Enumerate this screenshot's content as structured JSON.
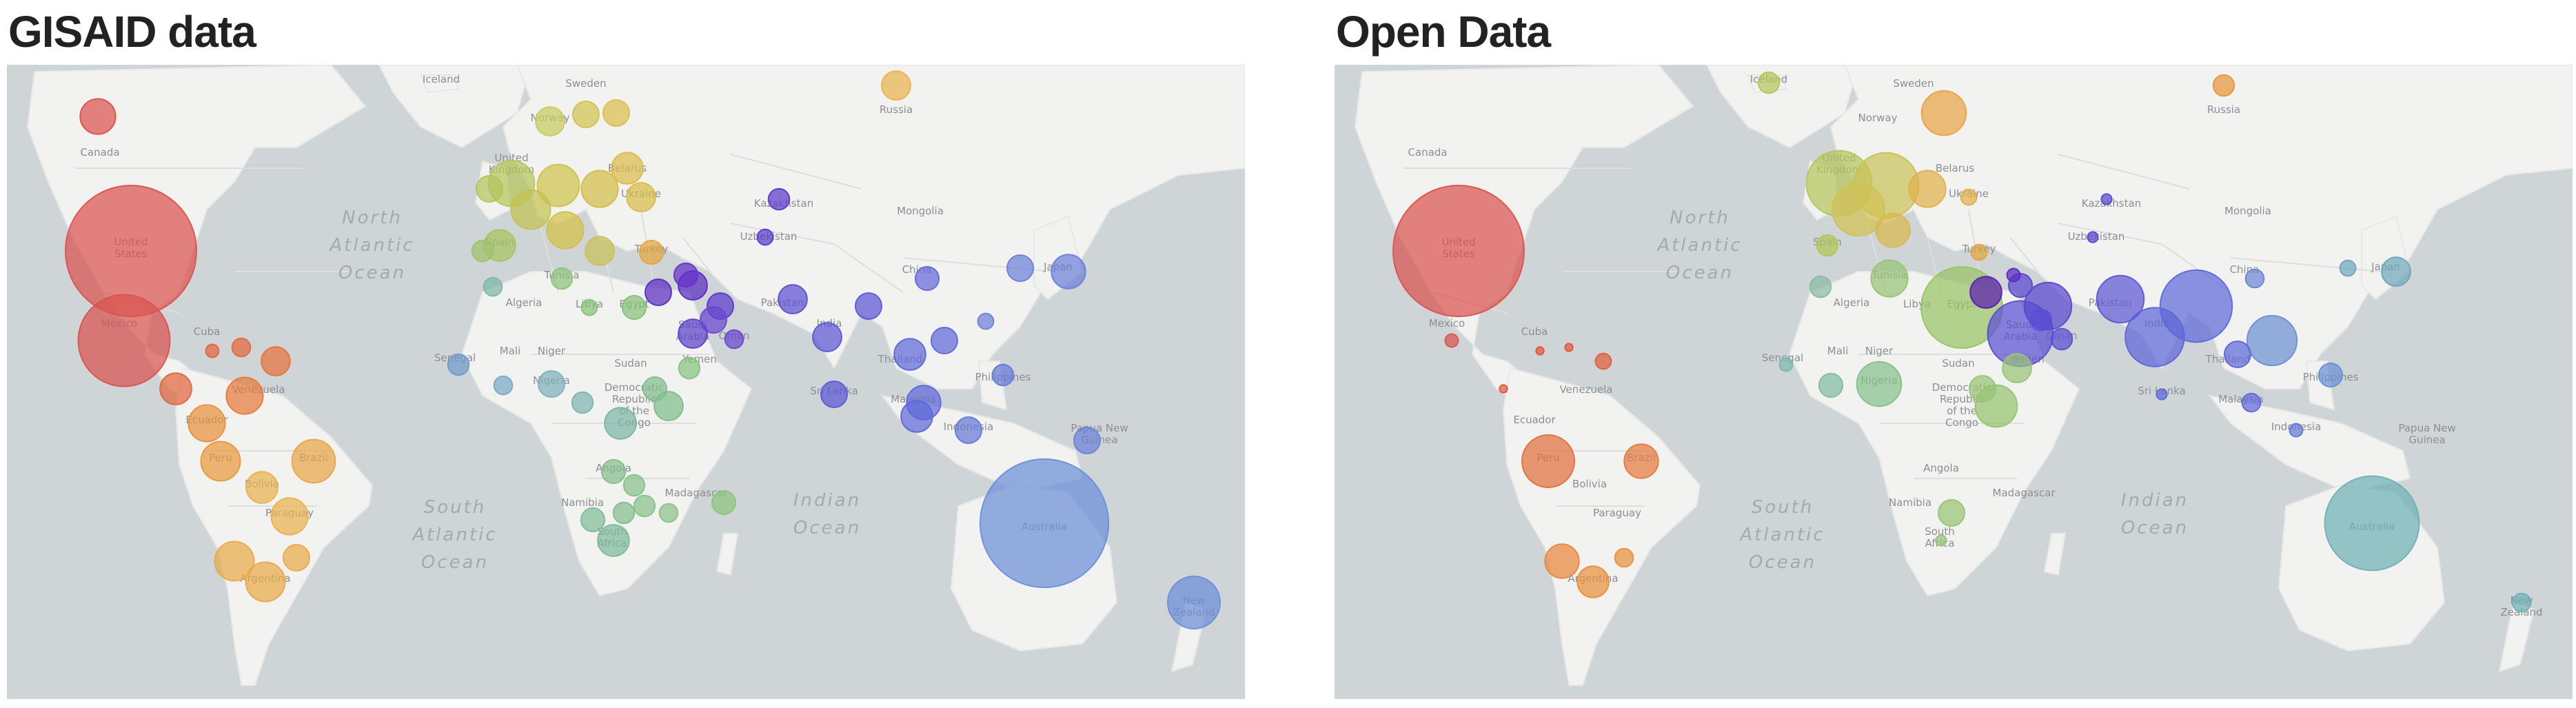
{
  "colors": {
    "ocean": "#cfd4d7",
    "land": "#f2f2f1",
    "border": "#ffffff",
    "title": "#222222",
    "ocean_label": "#a4abaf",
    "country_label": "#8b8f92"
  },
  "ocean_labels": [
    {
      "id": "north-atlantic",
      "lines": [
        "North",
        "Atlantic",
        "Ocean"
      ]
    },
    {
      "id": "south-atlantic",
      "lines": [
        "South",
        "Atlantic",
        "Ocean"
      ]
    },
    {
      "id": "indian",
      "lines": [
        "Indian",
        "Ocean"
      ]
    }
  ],
  "country_labels": [
    {
      "id": "iceland",
      "text": "Iceland"
    },
    {
      "id": "sweden",
      "text": "Sweden"
    },
    {
      "id": "russia",
      "text": "Russia"
    },
    {
      "id": "norway",
      "text": "Norway"
    },
    {
      "id": "canada",
      "text": "Canada"
    },
    {
      "id": "united-kingdom",
      "text": "United Kingdom"
    },
    {
      "id": "belarus",
      "text": "Belarus"
    },
    {
      "id": "ukraine",
      "text": "Ukraine"
    },
    {
      "id": "kazakhstan",
      "text": "Kazakhstan"
    },
    {
      "id": "mongolia",
      "text": "Mongolia"
    },
    {
      "id": "united-states",
      "text": "United States"
    },
    {
      "id": "spain",
      "text": "Spain"
    },
    {
      "id": "turkey",
      "text": "Turkey"
    },
    {
      "id": "uzbekistan",
      "text": "Uzbekistan"
    },
    {
      "id": "china",
      "text": "China"
    },
    {
      "id": "japan",
      "text": "Japan"
    },
    {
      "id": "tunisia",
      "text": "Tunisia"
    },
    {
      "id": "algeria",
      "text": "Algeria"
    },
    {
      "id": "libya",
      "text": "Libya"
    },
    {
      "id": "egypt",
      "text": "Egypt"
    },
    {
      "id": "pakistan",
      "text": "Pakistan"
    },
    {
      "id": "india",
      "text": "India"
    },
    {
      "id": "saudi-arabia",
      "text": "Saudi Arabia"
    },
    {
      "id": "oman",
      "text": "Oman"
    },
    {
      "id": "mexico",
      "text": "Mexico"
    },
    {
      "id": "cuba",
      "text": "Cuba"
    },
    {
      "id": "thailand",
      "text": "Thailand"
    },
    {
      "id": "mali",
      "text": "Mali"
    },
    {
      "id": "niger",
      "text": "Niger"
    },
    {
      "id": "sudan",
      "text": "Sudan"
    },
    {
      "id": "yemen",
      "text": "Yemen"
    },
    {
      "id": "senegal",
      "text": "Senegal"
    },
    {
      "id": "nigeria",
      "text": "Nigeria"
    },
    {
      "id": "philippines",
      "text": "Philippines"
    },
    {
      "id": "venezuela",
      "text": "Venezuela"
    },
    {
      "id": "drc",
      "text": "Democratic Republic of the Congo"
    },
    {
      "id": "sri-lanka",
      "text": "Sri Lanka"
    },
    {
      "id": "malaysia",
      "text": "Malaysia"
    },
    {
      "id": "ecuador",
      "text": "Ecuador"
    },
    {
      "id": "indonesia",
      "text": "Indonesia"
    },
    {
      "id": "papua-new-guinea",
      "text": "Papua New Guinea"
    },
    {
      "id": "peru",
      "text": "Peru"
    },
    {
      "id": "brazil",
      "text": "Brazil"
    },
    {
      "id": "angola",
      "text": "Angola"
    },
    {
      "id": "bolivia",
      "text": "Bolivia"
    },
    {
      "id": "madagascar",
      "text": "Madagascar"
    },
    {
      "id": "namibia",
      "text": "Namibia"
    },
    {
      "id": "paraguay",
      "text": "Paraguay"
    },
    {
      "id": "australia",
      "text": "Australia"
    },
    {
      "id": "south-africa",
      "text": "South Africa"
    },
    {
      "id": "argentina",
      "text": "Argentina"
    },
    {
      "id": "new-zealand",
      "text": "New Zealand"
    }
  ],
  "panels": [
    {
      "id": "gisaid",
      "title": "GISAID data",
      "bubbles": [
        {
          "c": "united-states",
          "size": 1.0,
          "color": "#d9534f"
        },
        {
          "c": "mexico",
          "size": 0.7,
          "color": "#d9534f"
        },
        {
          "c": "canada",
          "size": 0.27,
          "color": "#d9534f"
        },
        {
          "c": "cuba",
          "size": 0.1,
          "color": "#e2663e"
        },
        {
          "c": "venezuela",
          "size": 0.22,
          "color": "#e5733b"
        },
        {
          "c": "colombia",
          "size": 0.28,
          "color": "#e57a3b"
        },
        {
          "c": "central-america",
          "size": 0.24,
          "color": "#e2663e"
        },
        {
          "c": "caribbean",
          "size": 0.14,
          "color": "#e06a3a"
        },
        {
          "c": "ecuador",
          "size": 0.28,
          "color": "#e8903e"
        },
        {
          "c": "peru",
          "size": 0.3,
          "color": "#e8983e"
        },
        {
          "c": "brazil",
          "size": 0.33,
          "color": "#e8a548"
        },
        {
          "c": "bolivia",
          "size": 0.24,
          "color": "#e9b24f"
        },
        {
          "c": "paraguay",
          "size": 0.28,
          "color": "#e9b24f"
        },
        {
          "c": "chile",
          "size": 0.3,
          "color": "#e8aa48"
        },
        {
          "c": "argentina",
          "size": 0.3,
          "color": "#e8aa48"
        },
        {
          "c": "uruguay",
          "size": 0.2,
          "color": "#e8aa48"
        },
        {
          "c": "russia",
          "size": 0.22,
          "color": "#e9b24f"
        },
        {
          "c": "norway",
          "size": 0.22,
          "color": "#c7cc5e"
        },
        {
          "c": "sweden",
          "size": 0.2,
          "color": "#d2c152"
        },
        {
          "c": "finland",
          "size": 0.2,
          "color": "#dcbc4f"
        },
        {
          "c": "united-kingdom",
          "size": 0.35,
          "color": "#b6c65a"
        },
        {
          "c": "ireland",
          "size": 0.2,
          "color": "#b0c55c"
        },
        {
          "c": "france",
          "size": 0.3,
          "color": "#c3c352"
        },
        {
          "c": "germany",
          "size": 0.32,
          "color": "#cdc24c"
        },
        {
          "c": "poland",
          "size": 0.28,
          "color": "#d3bd4a"
        },
        {
          "c": "italy",
          "size": 0.28,
          "color": "#d2c048"
        },
        {
          "c": "spain",
          "size": 0.24,
          "color": "#a8c460"
        },
        {
          "c": "portugal",
          "size": 0.16,
          "color": "#9cc46a"
        },
        {
          "c": "belarus",
          "size": 0.24,
          "color": "#dbbc4c"
        },
        {
          "c": "ukraine",
          "size": 0.22,
          "color": "#d8bb4a"
        },
        {
          "c": "balkans",
          "size": 0.22,
          "color": "#c8c25a"
        },
        {
          "c": "turkey",
          "size": 0.18,
          "color": "#e4a73e"
        },
        {
          "c": "tunisia",
          "size": 0.16,
          "color": "#8ec47a"
        },
        {
          "c": "egypt",
          "size": 0.18,
          "color": "#86c07a"
        },
        {
          "c": "morocco",
          "size": 0.14,
          "color": "#7eb6a8"
        },
        {
          "c": "libya",
          "size": 0.12,
          "color": "#86c07a"
        },
        {
          "c": "georgia",
          "size": 0.18,
          "color": "#6632c8"
        },
        {
          "c": "israel",
          "size": 0.2,
          "color": "#5a2cc0"
        },
        {
          "c": "iraq",
          "size": 0.22,
          "color": "#5a2cc0"
        },
        {
          "c": "iran",
          "size": 0.2,
          "color": "#5c3acb"
        },
        {
          "c": "gulf",
          "size": 0.2,
          "color": "#6a46d0"
        },
        {
          "c": "saudi-arabia",
          "size": 0.22,
          "color": "#5d40cc"
        },
        {
          "c": "oman",
          "size": 0.14,
          "color": "#6a46d0"
        },
        {
          "c": "kazakhstan",
          "size": 0.16,
          "color": "#5a3acb"
        },
        {
          "c": "uzbekistan",
          "size": 0.12,
          "color": "#5a3acb"
        },
        {
          "c": "pakistan",
          "size": 0.22,
          "color": "#5d50d3"
        },
        {
          "c": "india",
          "size": 0.22,
          "color": "#5d58d6"
        },
        {
          "c": "bangladesh",
          "size": 0.2,
          "color": "#5d58d6"
        },
        {
          "c": "sri-lanka",
          "size": 0.2,
          "color": "#5d58d6"
        },
        {
          "c": "china",
          "size": 0.18,
          "color": "#6569d8"
        },
        {
          "c": "japan",
          "size": 0.26,
          "color": "#6b7fd8"
        },
        {
          "c": "korea",
          "size": 0.2,
          "color": "#6b7fd8"
        },
        {
          "c": "taiwan",
          "size": 0.12,
          "color": "#6b7fd8"
        },
        {
          "c": "thailand",
          "size": 0.24,
          "color": "#5e6ad8"
        },
        {
          "c": "vietnam",
          "size": 0.2,
          "color": "#5e6ad8"
        },
        {
          "c": "malaysia",
          "size": 0.26,
          "color": "#5e6ad8"
        },
        {
          "c": "singapore",
          "size": 0.24,
          "color": "#5e6ad8"
        },
        {
          "c": "philippines",
          "size": 0.16,
          "color": "#6678d8"
        },
        {
          "c": "indonesia",
          "size": 0.2,
          "color": "#6678d8"
        },
        {
          "c": "papua-new-guinea",
          "size": 0.2,
          "color": "#6b82d8"
        },
        {
          "c": "australia",
          "size": 0.98,
          "color": "#6b8fd8"
        },
        {
          "c": "new-zealand",
          "size": 0.4,
          "color": "#6b8fd8"
        },
        {
          "c": "senegal",
          "size": 0.16,
          "color": "#6f9bc9"
        },
        {
          "c": "ghana",
          "size": 0.14,
          "color": "#79a9c6"
        },
        {
          "c": "nigeria",
          "size": 0.2,
          "color": "#7db0bd"
        },
        {
          "c": "cameroon",
          "size": 0.16,
          "color": "#7bb5ad"
        },
        {
          "c": "drc",
          "size": 0.24,
          "color": "#7ab5a5"
        },
        {
          "c": "kenya",
          "size": 0.22,
          "color": "#7fbd8c"
        },
        {
          "c": "ethiopia",
          "size": 0.16,
          "color": "#86c27f"
        },
        {
          "c": "uganda",
          "size": 0.18,
          "color": "#80bd8f"
        },
        {
          "c": "angola",
          "size": 0.18,
          "color": "#84be8c"
        },
        {
          "c": "zambia",
          "size": 0.16,
          "color": "#88c18a"
        },
        {
          "c": "zimbabwe",
          "size": 0.16,
          "color": "#88c18a"
        },
        {
          "c": "mozambique",
          "size": 0.14,
          "color": "#8ac286"
        },
        {
          "c": "namibia",
          "size": 0.18,
          "color": "#80bd96"
        },
        {
          "c": "botswana",
          "size": 0.16,
          "color": "#84be8c"
        },
        {
          "c": "south-africa",
          "size": 0.24,
          "color": "#7dba9c"
        },
        {
          "c": "madagascar",
          "size": 0.18,
          "color": "#8ec580"
        }
      ]
    },
    {
      "id": "open-data",
      "title": "Open Data",
      "bubbles": [
        {
          "c": "united-states",
          "size": 1.0,
          "color": "#d9534f"
        },
        {
          "c": "mexico",
          "size": 0.1,
          "color": "#d9534f"
        },
        {
          "c": "cuba",
          "size": 0.06,
          "color": "#e0593f"
        },
        {
          "c": "caribbean",
          "size": 0.06,
          "color": "#e0593f"
        },
        {
          "c": "central-america",
          "size": 0.06,
          "color": "#e0593f"
        },
        {
          "c": "venezuela",
          "size": 0.12,
          "color": "#e25f3f"
        },
        {
          "c": "peru",
          "size": 0.4,
          "color": "#e2703f"
        },
        {
          "c": "brazil",
          "size": 0.26,
          "color": "#e47a3f"
        },
        {
          "c": "chile",
          "size": 0.26,
          "color": "#e8883e"
        },
        {
          "c": "argentina",
          "size": 0.24,
          "color": "#e8903e"
        },
        {
          "c": "uruguay",
          "size": 0.14,
          "color": "#e8903e"
        },
        {
          "c": "russia",
          "size": 0.16,
          "color": "#e8963e"
        },
        {
          "c": "finland",
          "size": 0.34,
          "color": "#e8a348"
        },
        {
          "c": "united-kingdom",
          "size": 0.5,
          "color": "#b6c65a"
        },
        {
          "c": "germany",
          "size": 0.5,
          "color": "#c8c25a"
        },
        {
          "c": "france",
          "size": 0.4,
          "color": "#d2c054"
        },
        {
          "c": "poland",
          "size": 0.28,
          "color": "#e0b24c"
        },
        {
          "c": "italy",
          "size": 0.26,
          "color": "#d8b94c"
        },
        {
          "c": "spain",
          "size": 0.16,
          "color": "#b2c65a"
        },
        {
          "c": "iceland",
          "size": 0.16,
          "color": "#b2c65a"
        },
        {
          "c": "ukraine",
          "size": 0.12,
          "color": "#e0ae48"
        },
        {
          "c": "turkey",
          "size": 0.12,
          "color": "#e0a640"
        },
        {
          "c": "georgia",
          "size": 0.1,
          "color": "#5a2cc0"
        },
        {
          "c": "tunisia",
          "size": 0.28,
          "color": "#98c476"
        },
        {
          "c": "morocco",
          "size": 0.16,
          "color": "#88bda2"
        },
        {
          "c": "egypt",
          "size": 0.62,
          "color": "#98c466"
        },
        {
          "c": "israel",
          "size": 0.24,
          "color": "#5a1fb0"
        },
        {
          "c": "iran",
          "size": 0.36,
          "color": "#5a48d0"
        },
        {
          "c": "iraq",
          "size": 0.18,
          "color": "#5a48d0"
        },
        {
          "c": "saudi-arabia",
          "size": 0.5,
          "color": "#5b4fd4"
        },
        {
          "c": "gulf",
          "size": 0.16,
          "color": "#5b4fd4"
        },
        {
          "c": "oman",
          "size": 0.16,
          "color": "#5b4fd4"
        },
        {
          "c": "kazakhstan",
          "size": 0.08,
          "color": "#5a48d0"
        },
        {
          "c": "uzbekistan",
          "size": 0.08,
          "color": "#5a48d0"
        },
        {
          "c": "pakistan",
          "size": 0.36,
          "color": "#5d58d6"
        },
        {
          "c": "india",
          "size": 0.45,
          "color": "#5e66d8"
        },
        {
          "c": "bangladesh",
          "size": 0.55,
          "color": "#5e6ad8"
        },
        {
          "c": "sri-lanka",
          "size": 0.08,
          "color": "#5e6ad8"
        },
        {
          "c": "china",
          "size": 0.14,
          "color": "#6b85d2"
        },
        {
          "c": "japan",
          "size": 0.22,
          "color": "#6ea7b8"
        },
        {
          "c": "korea",
          "size": 0.12,
          "color": "#6ea7b8"
        },
        {
          "c": "vietnam",
          "size": 0.38,
          "color": "#6b8fd2"
        },
        {
          "c": "thailand",
          "size": 0.2,
          "color": "#5e6ad8"
        },
        {
          "c": "philippines",
          "size": 0.18,
          "color": "#6b8fd2"
        },
        {
          "c": "malaysia",
          "size": 0.14,
          "color": "#5e6ad8"
        },
        {
          "c": "indonesia",
          "size": 0.1,
          "color": "#6678d8"
        },
        {
          "c": "australia",
          "size": 0.72,
          "color": "#6fb0b4"
        },
        {
          "c": "new-zealand",
          "size": 0.14,
          "color": "#6fb0b4"
        },
        {
          "c": "senegal",
          "size": 0.1,
          "color": "#7eb8b0"
        },
        {
          "c": "ghana",
          "size": 0.18,
          "color": "#7fbba0"
        },
        {
          "c": "nigeria",
          "size": 0.34,
          "color": "#86c08c"
        },
        {
          "c": "kenya",
          "size": 0.32,
          "color": "#96c470"
        },
        {
          "c": "ethiopia",
          "size": 0.22,
          "color": "#98c476"
        },
        {
          "c": "uganda",
          "size": 0.2,
          "color": "#98c476"
        },
        {
          "c": "botswana",
          "size": 0.2,
          "color": "#98c476"
        },
        {
          "c": "south-africa",
          "size": 0.08,
          "color": "#98c476"
        }
      ]
    }
  ]
}
